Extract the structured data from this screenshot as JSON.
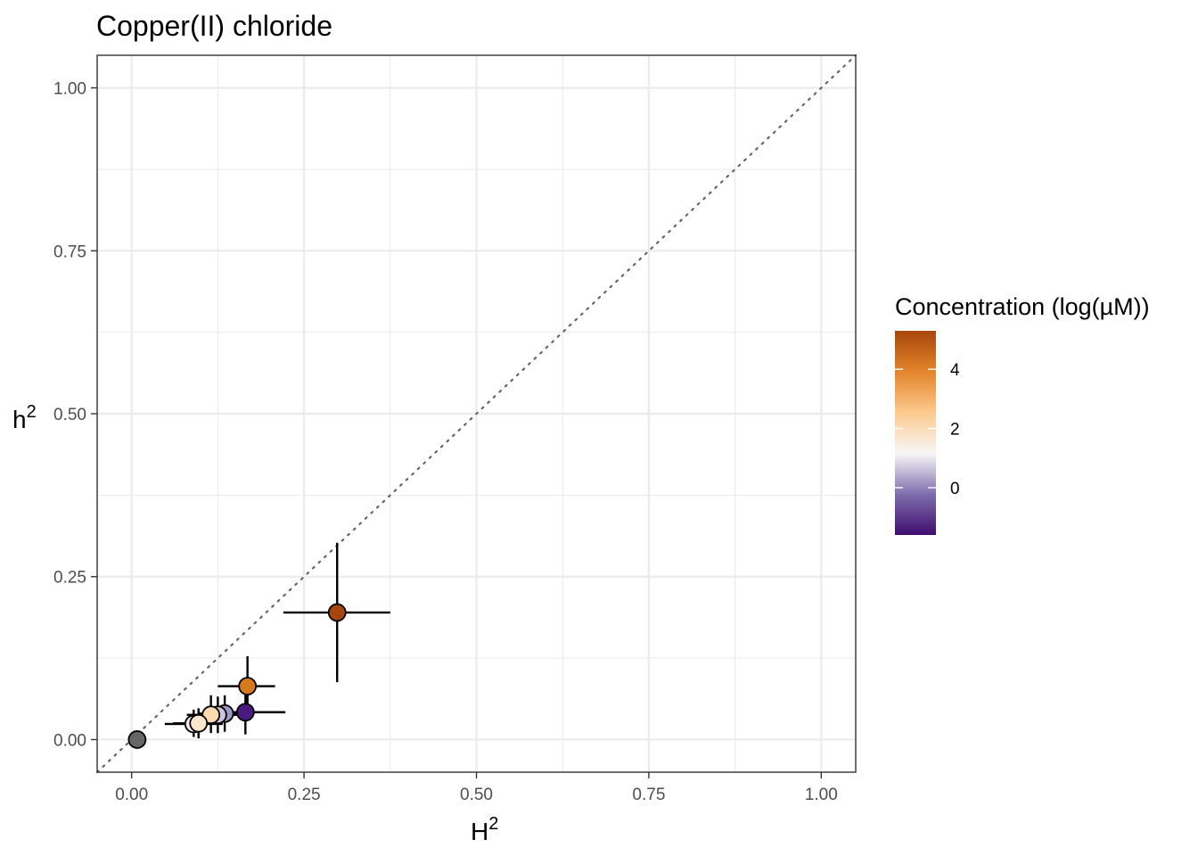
{
  "chart_data": {
    "type": "scatter",
    "title": "Copper(II) chloride",
    "xlabel_base": "H",
    "xlabel_sup": "2",
    "ylabel_base": "h",
    "ylabel_sup": "2",
    "xlim": [
      -0.05,
      1.05
    ],
    "ylim": [
      -0.05,
      1.05
    ],
    "x_ticks": [
      0.0,
      0.25,
      0.5,
      0.75,
      1.0
    ],
    "x_tick_labels": [
      "0.00",
      "0.25",
      "0.50",
      "0.75",
      "1.00"
    ],
    "y_ticks": [
      0.0,
      0.25,
      0.5,
      0.75,
      1.0
    ],
    "y_tick_labels": [
      "0.00",
      "0.25",
      "0.50",
      "0.75",
      "1.00"
    ],
    "grid": true,
    "reference_line": {
      "slope": 1,
      "intercept": 0,
      "style": "dotted",
      "color": "#666666"
    },
    "legend": {
      "title": "Concentration (log(µM))",
      "placement": "right",
      "range": [
        -1.6,
        5.3
      ],
      "ticks": [
        0,
        2,
        4
      ],
      "tick_labels": [
        "0",
        "2",
        "4"
      ],
      "gradient": [
        "#3F0D6E",
        "#7F6EAD",
        "#F7F7F7",
        "#FDC98E",
        "#E3852A",
        "#A8470D"
      ]
    },
    "points": [
      {
        "x": 0.008,
        "y": 0.0,
        "conc": null,
        "color": "#666666"
      },
      {
        "x": 0.298,
        "y": 0.195,
        "x_err": [
          0.22,
          0.375
        ],
        "y_err": [
          0.088,
          0.302
        ],
        "conc": 5.3,
        "color": "#A8470D"
      },
      {
        "x": 0.168,
        "y": 0.082,
        "x_err": [
          0.125,
          0.208
        ],
        "y_err": [
          0.04,
          0.128
        ],
        "conc": 4.3,
        "color": "#D9791F"
      },
      {
        "x": 0.165,
        "y": 0.042,
        "x_err": [
          0.108,
          0.223
        ],
        "y_err": [
          0.008,
          0.085
        ],
        "conc": -1.2,
        "color": "#4A1A7F"
      },
      {
        "x": 0.135,
        "y": 0.04,
        "x_err": [
          0.098,
          0.172
        ],
        "y_err": [
          0.012,
          0.068
        ],
        "conc": 0.2,
        "color": "#9E96C5"
      },
      {
        "x": 0.125,
        "y": 0.038,
        "x_err": [
          0.09,
          0.158
        ],
        "y_err": [
          0.01,
          0.066
        ],
        "conc": 1.0,
        "color": "#C9C4E0"
      },
      {
        "x": 0.09,
        "y": 0.024,
        "x_err": [
          0.048,
          0.132
        ],
        "y_err": [
          0.004,
          0.046
        ],
        "conc": 1.8,
        "color": "#EDEAF3"
      },
      {
        "x": 0.115,
        "y": 0.038,
        "x_err": [
          0.08,
          0.15
        ],
        "y_err": [
          0.01,
          0.068
        ],
        "conc": 2.8,
        "color": "#FDD9AE"
      },
      {
        "x": 0.097,
        "y": 0.025,
        "x_err": [
          0.06,
          0.132
        ],
        "y_err": [
          0.002,
          0.048
        ],
        "conc": 2.3,
        "color": "#FCE6CC"
      }
    ]
  }
}
